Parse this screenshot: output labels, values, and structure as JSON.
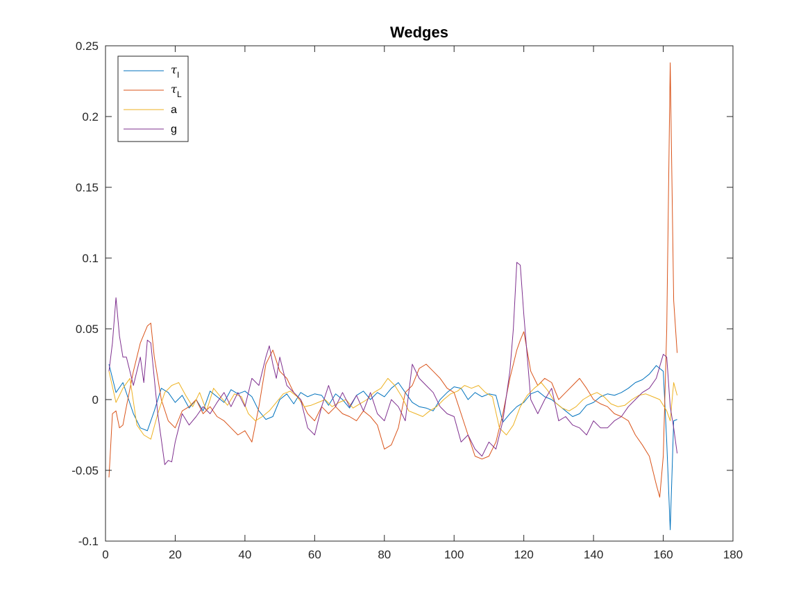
{
  "chart_data": {
    "type": "line",
    "title": "Wedges",
    "xlabel": "",
    "ylabel": "",
    "xlim": [
      0,
      180
    ],
    "ylim": [
      -0.1,
      0.25
    ],
    "xticks": [
      0,
      20,
      40,
      60,
      80,
      100,
      120,
      140,
      160,
      180
    ],
    "yticks": [
      -0.1,
      -0.05,
      0,
      0.05,
      0.1,
      0.15,
      0.2,
      0.25
    ],
    "ytick_labels": [
      "-0.1",
      "-0.05",
      "0",
      "0.05",
      "0.1",
      "0.15",
      "0.2",
      "0.25"
    ],
    "grid": false,
    "legend_position": "top-left",
    "series": [
      {
        "name": "τ_I",
        "name_main": "τ",
        "name_sub": "I",
        "color": "#0072BD",
        "x": [
          1,
          3,
          5,
          8,
          10,
          12,
          14,
          16,
          18,
          20,
          22,
          24,
          26,
          28,
          30,
          32,
          34,
          36,
          38,
          40,
          42,
          44,
          46,
          48,
          50,
          52,
          54,
          56,
          58,
          60,
          62,
          64,
          66,
          68,
          70,
          72,
          74,
          76,
          78,
          80,
          82,
          84,
          86,
          88,
          90,
          92,
          94,
          96,
          98,
          100,
          102,
          104,
          106,
          108,
          110,
          112,
          114,
          116,
          118,
          120,
          122,
          124,
          126,
          128,
          130,
          132,
          134,
          136,
          138,
          140,
          142,
          144,
          146,
          148,
          150,
          152,
          154,
          156,
          158,
          160,
          161,
          162,
          163,
          164
        ],
        "values": [
          0.025,
          0.005,
          0.012,
          -0.01,
          -0.02,
          -0.022,
          -0.008,
          0.008,
          0.005,
          -0.002,
          0.003,
          -0.006,
          0.0,
          -0.008,
          0.006,
          0.002,
          -0.002,
          0.007,
          0.004,
          0.006,
          0.002,
          -0.008,
          -0.014,
          -0.012,
          0.0,
          0.004,
          -0.003,
          0.005,
          0.002,
          0.004,
          0.003,
          -0.004,
          0.004,
          0.0,
          -0.006,
          0.003,
          0.006,
          0.0,
          0.005,
          0.002,
          0.008,
          0.012,
          0.005,
          -0.002,
          -0.005,
          -0.006,
          -0.008,
          0.0,
          0.005,
          0.009,
          0.008,
          0.0,
          0.005,
          0.002,
          0.004,
          0.003,
          -0.016,
          -0.01,
          -0.005,
          -0.002,
          0.004,
          0.006,
          0.002,
          0.0,
          -0.004,
          -0.008,
          -0.012,
          -0.01,
          -0.004,
          -0.002,
          0.002,
          0.004,
          0.003,
          0.005,
          0.008,
          0.012,
          0.014,
          0.018,
          0.024,
          0.02,
          -0.03,
          -0.092,
          -0.015,
          -0.014
        ]
      },
      {
        "name": "τ_L",
        "name_main": "τ",
        "name_sub": "L",
        "color": "#D95319",
        "x": [
          1,
          2,
          3,
          4,
          5,
          6,
          8,
          10,
          12,
          13,
          14,
          16,
          18,
          20,
          22,
          24,
          26,
          28,
          30,
          32,
          34,
          36,
          38,
          40,
          42,
          44,
          46,
          47,
          48,
          50,
          52,
          54,
          56,
          58,
          60,
          62,
          64,
          66,
          68,
          70,
          72,
          74,
          76,
          78,
          80,
          82,
          84,
          86,
          88,
          90,
          92,
          94,
          96,
          98,
          100,
          102,
          104,
          106,
          108,
          110,
          112,
          114,
          116,
          118,
          119,
          120,
          122,
          124,
          126,
          128,
          130,
          132,
          134,
          136,
          138,
          140,
          142,
          144,
          146,
          148,
          150,
          152,
          154,
          156,
          158,
          159,
          160,
          161,
          162,
          163,
          164
        ],
        "values": [
          -0.055,
          -0.01,
          -0.008,
          -0.02,
          -0.018,
          -0.005,
          0.02,
          0.04,
          0.052,
          0.054,
          0.03,
          0.0,
          -0.015,
          -0.02,
          -0.008,
          -0.005,
          0.0,
          -0.01,
          -0.005,
          -0.012,
          -0.015,
          -0.02,
          -0.025,
          -0.022,
          -0.03,
          -0.005,
          0.025,
          0.03,
          0.035,
          0.02,
          0.015,
          0.005,
          0.0,
          -0.01,
          -0.015,
          -0.005,
          -0.01,
          -0.005,
          -0.01,
          -0.012,
          -0.015,
          -0.008,
          -0.012,
          -0.018,
          -0.035,
          -0.032,
          -0.02,
          0.005,
          0.01,
          0.022,
          0.025,
          0.02,
          0.015,
          0.008,
          0.005,
          -0.01,
          -0.025,
          -0.04,
          -0.042,
          -0.04,
          -0.03,
          -0.01,
          0.015,
          0.035,
          0.042,
          0.048,
          0.02,
          0.01,
          0.015,
          0.012,
          0.0,
          0.005,
          0.01,
          0.015,
          0.008,
          0.0,
          -0.003,
          -0.005,
          -0.01,
          -0.012,
          -0.015,
          -0.025,
          -0.032,
          -0.04,
          -0.06,
          -0.069,
          -0.04,
          0.05,
          0.238,
          0.07,
          0.033
        ]
      },
      {
        "name": "a",
        "color": "#EDB120",
        "x": [
          1,
          3,
          5,
          7,
          9,
          11,
          13,
          15,
          17,
          19,
          21,
          23,
          25,
          27,
          29,
          31,
          33,
          35,
          37,
          39,
          41,
          43,
          45,
          47,
          49,
          51,
          53,
          55,
          57,
          59,
          61,
          63,
          65,
          67,
          69,
          71,
          73,
          75,
          77,
          79,
          81,
          83,
          85,
          87,
          89,
          91,
          93,
          95,
          97,
          99,
          101,
          103,
          105,
          107,
          109,
          111,
          113,
          115,
          117,
          119,
          121,
          123,
          125,
          127,
          129,
          131,
          133,
          135,
          137,
          139,
          141,
          143,
          145,
          147,
          149,
          151,
          153,
          155,
          157,
          159,
          161,
          162,
          163,
          164
        ],
        "values": [
          0.02,
          -0.002,
          0.008,
          0.015,
          -0.018,
          -0.025,
          -0.028,
          -0.01,
          0.005,
          0.01,
          0.012,
          0.003,
          -0.005,
          0.005,
          -0.008,
          0.008,
          0.002,
          -0.004,
          0.004,
          0.002,
          -0.01,
          -0.015,
          -0.012,
          -0.008,
          -0.002,
          0.004,
          0.006,
          0.002,
          -0.005,
          -0.004,
          -0.002,
          0.0,
          -0.005,
          -0.002,
          0.0,
          -0.006,
          -0.003,
          0.0,
          0.005,
          0.008,
          0.015,
          0.01,
          0.002,
          -0.008,
          -0.01,
          -0.012,
          -0.008,
          -0.005,
          0.0,
          0.004,
          0.006,
          0.01,
          0.008,
          0.01,
          0.005,
          0.002,
          -0.02,
          -0.025,
          -0.018,
          -0.005,
          0.003,
          0.008,
          0.012,
          0.006,
          -0.002,
          -0.006,
          -0.008,
          -0.005,
          0.0,
          0.003,
          0.005,
          0.002,
          -0.003,
          -0.005,
          -0.004,
          0.0,
          0.003,
          0.004,
          0.002,
          0.0,
          -0.008,
          -0.015,
          0.012,
          0.003
        ]
      },
      {
        "name": "g",
        "color": "#7E2F8E",
        "x": [
          1,
          2,
          3,
          4,
          5,
          6,
          8,
          10,
          11,
          12,
          13,
          15,
          17,
          18,
          19,
          20,
          22,
          24,
          26,
          28,
          30,
          32,
          34,
          36,
          38,
          40,
          42,
          44,
          46,
          47,
          48,
          49,
          50,
          52,
          54,
          56,
          58,
          60,
          62,
          64,
          66,
          68,
          70,
          72,
          74,
          76,
          78,
          80,
          82,
          84,
          86,
          88,
          90,
          92,
          94,
          96,
          98,
          100,
          102,
          104,
          106,
          108,
          110,
          112,
          114,
          116,
          117,
          118,
          119,
          120,
          121,
          122,
          124,
          126,
          128,
          130,
          132,
          134,
          136,
          138,
          140,
          142,
          144,
          146,
          148,
          150,
          152,
          154,
          156,
          158,
          160,
          161,
          162,
          163,
          164
        ],
        "values": [
          0.02,
          0.04,
          0.072,
          0.045,
          0.03,
          0.03,
          0.01,
          0.03,
          0.012,
          0.042,
          0.04,
          -0.01,
          -0.046,
          -0.043,
          -0.044,
          -0.03,
          -0.01,
          -0.018,
          -0.012,
          -0.005,
          -0.01,
          -0.002,
          0.005,
          -0.005,
          0.005,
          -0.005,
          0.015,
          0.01,
          0.03,
          0.038,
          0.025,
          0.015,
          0.03,
          0.01,
          0.005,
          0.0,
          -0.02,
          -0.025,
          -0.005,
          0.01,
          -0.005,
          0.005,
          -0.005,
          0.003,
          -0.008,
          0.005,
          -0.01,
          -0.015,
          0.0,
          -0.005,
          -0.015,
          0.025,
          0.015,
          0.01,
          0.005,
          -0.005,
          -0.01,
          -0.012,
          -0.03,
          -0.025,
          -0.035,
          -0.04,
          -0.03,
          -0.035,
          -0.015,
          0.02,
          0.05,
          0.097,
          0.095,
          0.06,
          0.03,
          0.0,
          -0.01,
          0.0,
          0.008,
          -0.015,
          -0.012,
          -0.018,
          -0.02,
          -0.025,
          -0.015,
          -0.02,
          -0.02,
          -0.015,
          -0.012,
          -0.005,
          0.0,
          0.005,
          0.008,
          0.015,
          0.032,
          0.03,
          -0.005,
          -0.02,
          -0.038
        ]
      }
    ]
  }
}
